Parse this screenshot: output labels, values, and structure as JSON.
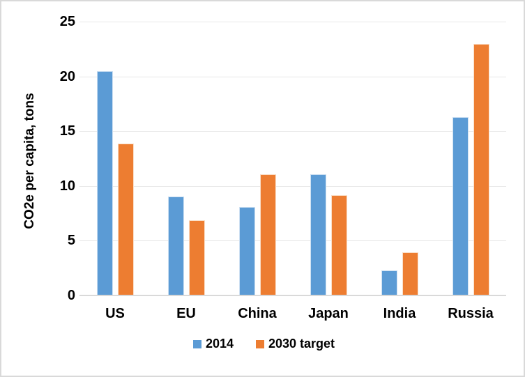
{
  "chart_data": {
    "type": "bar",
    "title": "",
    "xlabel": "",
    "ylabel": "CO2e per capita, tons",
    "categories": [
      "US",
      "EU",
      "China",
      "Japan",
      "India",
      "Russia"
    ],
    "series": [
      {
        "name": "2014",
        "color": "#5B9BD5",
        "border_color": "#CDE0F2",
        "values": [
          20.4,
          9.0,
          8.0,
          11.0,
          2.2,
          16.2
        ]
      },
      {
        "name": "2030 target",
        "color": "#ED7D31",
        "border_color": "#FADFC9",
        "values": [
          13.8,
          6.8,
          11.0,
          9.1,
          3.9,
          22.9
        ]
      }
    ],
    "ylim": [
      0,
      25
    ],
    "yticks": [
      0,
      5,
      10,
      15,
      20,
      25
    ],
    "grid": true,
    "legend_position": "bottom",
    "colors": {
      "gridline": "#E7E7E7",
      "axis_line": "#D9D9D9",
      "frame_border": "#D9D9D9",
      "text": "#000000",
      "background": "#FFFFFF"
    }
  }
}
